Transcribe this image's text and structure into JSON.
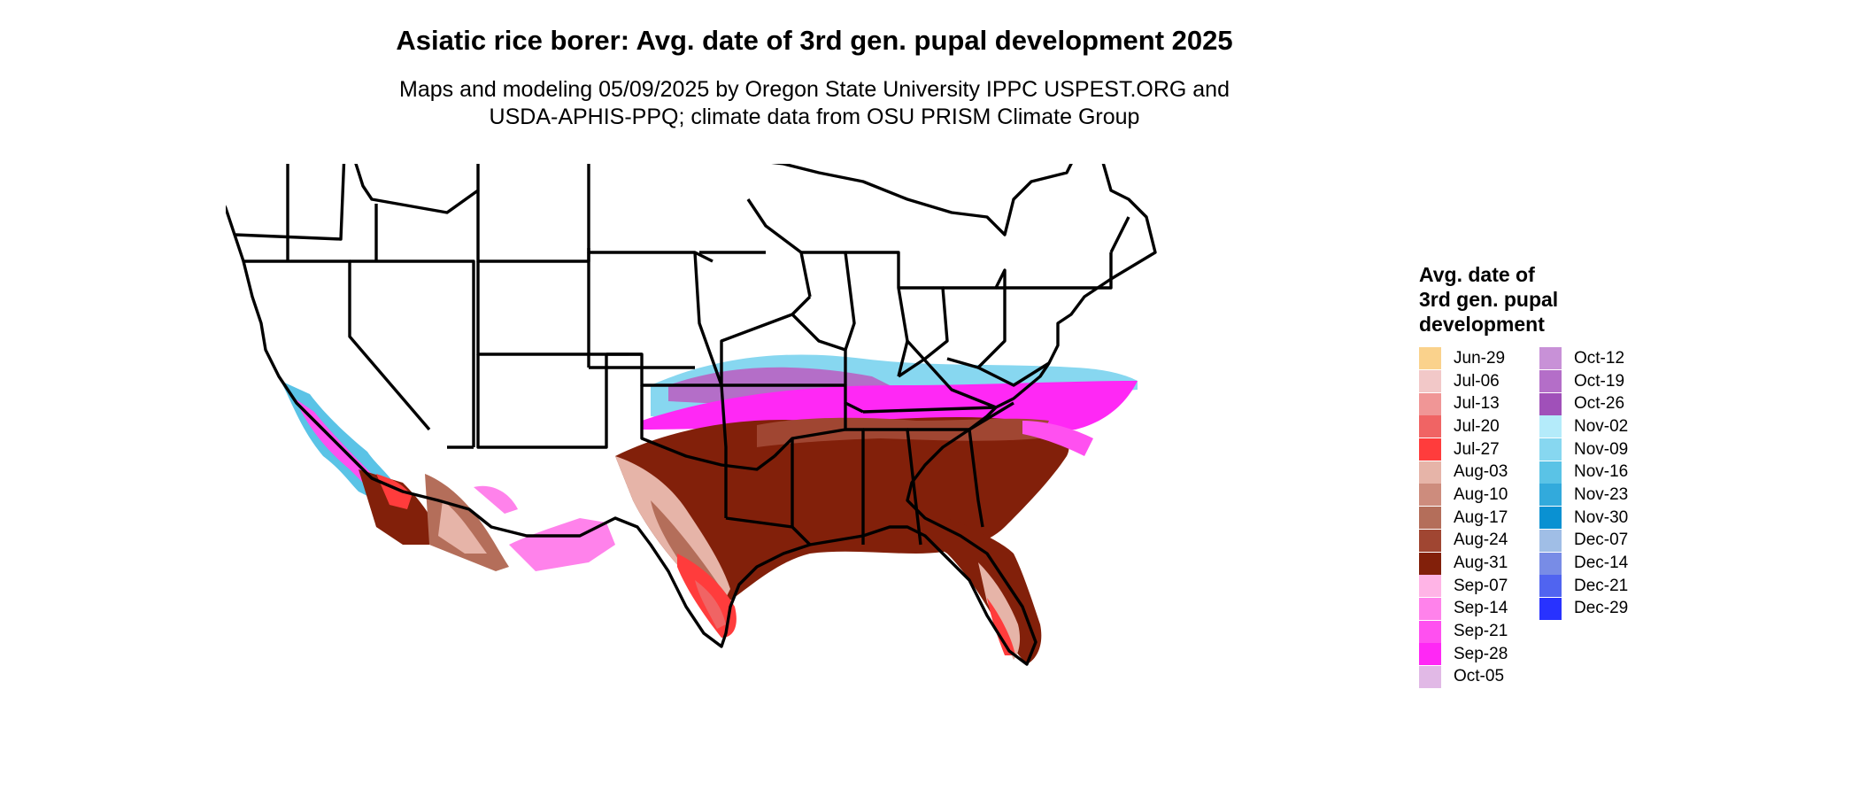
{
  "title": "Asiatic rice borer: Avg. date of 3rd gen. pupal development 2025",
  "subtitle_line1": "Maps and modeling 05/09/2025 by Oregon State University IPPC USPEST.ORG and",
  "subtitle_line2": "USDA-APHIS-PPQ; climate data from OSU PRISM Climate Group",
  "legend": {
    "title": "Avg. date of\n3rd gen. pupal\ndevelopment",
    "col1": [
      {
        "label": "Jun-29",
        "color": "#FAD28C"
      },
      {
        "label": "Jul-06",
        "color": "#F2C8C8"
      },
      {
        "label": "Jul-13",
        "color": "#F09696"
      },
      {
        "label": "Jul-20",
        "color": "#F06464"
      },
      {
        "label": "Jul-27",
        "color": "#FF3C3C"
      },
      {
        "label": "Aug-03",
        "color": "#E6B4A8"
      },
      {
        "label": "Aug-10",
        "color": "#CD8C7D"
      },
      {
        "label": "Aug-17",
        "color": "#B46E5A"
      },
      {
        "label": "Aug-24",
        "color": "#A04632"
      },
      {
        "label": "Aug-31",
        "color": "#82200A"
      },
      {
        "label": "Sep-07",
        "color": "#FFB4E6"
      },
      {
        "label": "Sep-14",
        "color": "#FF82EB"
      },
      {
        "label": "Sep-21",
        "color": "#FF50F0"
      },
      {
        "label": "Sep-28",
        "color": "#FF28F5"
      },
      {
        "label": "Oct-05",
        "color": "#E1B9E6"
      }
    ],
    "col2": [
      {
        "label": "Oct-12",
        "color": "#C891D7"
      },
      {
        "label": "Oct-19",
        "color": "#B46EC8"
      },
      {
        "label": "Oct-26",
        "color": "#A050B9"
      },
      {
        "label": "Nov-02",
        "color": "#B4EBFA"
      },
      {
        "label": "Nov-09",
        "color": "#87D7F0"
      },
      {
        "label": "Nov-16",
        "color": "#5AC3E6"
      },
      {
        "label": "Nov-23",
        "color": "#32AADC"
      },
      {
        "label": "Nov-30",
        "color": "#0A91D2"
      },
      {
        "label": "Dec-07",
        "color": "#A0BEE6"
      },
      {
        "label": "Dec-14",
        "color": "#788CE6"
      },
      {
        "label": "Dec-21",
        "color": "#5064F0"
      },
      {
        "label": "Dec-29",
        "color": "#2832FF"
      }
    ]
  }
}
